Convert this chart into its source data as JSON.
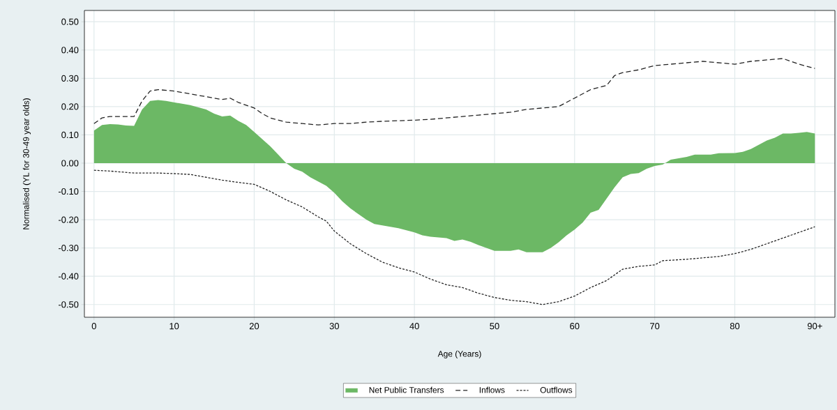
{
  "chart_data": {
    "type": "area",
    "xlabel": "Age (Years)",
    "ylabel": "Normalised (YL for 30-49 year olds)",
    "xlim": [
      -1.2,
      92.5
    ],
    "ylim": [
      -0.545,
      0.54
    ],
    "xticks": [
      0,
      10,
      20,
      30,
      40,
      50,
      60,
      70,
      80,
      {
        "value": 90,
        "label": "90+"
      }
    ],
    "yticks": [
      {
        "value": 0.5,
        "label": "0.50"
      },
      {
        "value": 0.4,
        "label": "0.40"
      },
      {
        "value": 0.3,
        "label": "0.30"
      },
      {
        "value": 0.2,
        "label": "0.20"
      },
      {
        "value": 0.1,
        "label": "0.10"
      },
      {
        "value": 0,
        "label": "0.00"
      },
      {
        "value": -0.1,
        "label": "-0.10"
      },
      {
        "value": -0.2,
        "label": "-0.20"
      },
      {
        "value": -0.3,
        "label": "-0.30"
      },
      {
        "value": -0.4,
        "label": "-0.40"
      },
      {
        "value": -0.5,
        "label": "-0.50"
      }
    ],
    "grid": true,
    "legend": "bottom",
    "series": [
      {
        "name": "Net Public Transfers",
        "color": "#6cb865",
        "x": [
          0,
          1,
          2,
          3,
          4,
          5,
          6,
          7,
          8,
          9,
          10,
          12,
          14,
          15,
          16,
          17,
          18,
          19,
          20,
          21,
          22,
          23,
          24,
          25,
          26,
          27,
          28,
          29,
          30,
          31,
          32,
          33,
          34,
          35,
          36,
          37,
          38,
          40,
          41,
          42,
          44,
          45,
          46,
          47,
          48,
          50,
          52,
          53,
          54,
          56,
          57,
          58,
          59,
          60,
          61,
          62,
          63,
          64,
          65,
          66,
          67,
          68,
          69,
          70,
          71,
          72,
          73,
          74,
          75,
          77,
          78,
          80,
          81,
          82,
          83,
          84,
          85,
          86,
          87,
          88,
          89,
          90
        ],
        "values": [
          0.115,
          0.135,
          0.138,
          0.137,
          0.133,
          0.132,
          0.19,
          0.22,
          0.223,
          0.22,
          0.215,
          0.205,
          0.19,
          0.175,
          0.165,
          0.168,
          0.15,
          0.135,
          0.11,
          0.085,
          0.06,
          0.03,
          0.0,
          -0.02,
          -0.03,
          -0.05,
          -0.065,
          -0.08,
          -0.105,
          -0.135,
          -0.16,
          -0.18,
          -0.2,
          -0.215,
          -0.22,
          -0.225,
          -0.23,
          -0.245,
          -0.255,
          -0.26,
          -0.265,
          -0.275,
          -0.27,
          -0.278,
          -0.29,
          -0.31,
          -0.31,
          -0.305,
          -0.315,
          -0.315,
          -0.3,
          -0.28,
          -0.255,
          -0.235,
          -0.21,
          -0.175,
          -0.165,
          -0.125,
          -0.085,
          -0.05,
          -0.038,
          -0.035,
          -0.02,
          -0.01,
          -0.005,
          0.012,
          0.017,
          0.022,
          0.03,
          0.03,
          0.035,
          0.036,
          0.04,
          0.05,
          0.065,
          0.08,
          0.09,
          0.105,
          0.105,
          0.107,
          0.11,
          0.105
        ]
      },
      {
        "name": "Inflows",
        "type": "line",
        "line_style": "dashed",
        "color": "#222222",
        "x": [
          0,
          1,
          2,
          4,
          5,
          6,
          7,
          8,
          10,
          12,
          14,
          16,
          17,
          18,
          20,
          21,
          22,
          24,
          26,
          28,
          30,
          32,
          34,
          36,
          38,
          40,
          42,
          44,
          46,
          48,
          50,
          52,
          54,
          56,
          58,
          60,
          62,
          64,
          65,
          66,
          68,
          70,
          72,
          74,
          76,
          78,
          80,
          82,
          84,
          86,
          88,
          90
        ],
        "values": [
          0.14,
          0.16,
          0.165,
          0.165,
          0.165,
          0.22,
          0.255,
          0.26,
          0.255,
          0.245,
          0.235,
          0.225,
          0.23,
          0.215,
          0.195,
          0.175,
          0.16,
          0.145,
          0.14,
          0.135,
          0.14,
          0.14,
          0.145,
          0.148,
          0.15,
          0.152,
          0.155,
          0.16,
          0.165,
          0.17,
          0.175,
          0.18,
          0.19,
          0.195,
          0.2,
          0.23,
          0.26,
          0.275,
          0.31,
          0.32,
          0.33,
          0.345,
          0.35,
          0.355,
          0.36,
          0.355,
          0.35,
          0.36,
          0.365,
          0.37,
          0.35,
          0.335
        ]
      },
      {
        "name": "Outflows",
        "type": "line",
        "line_style": "dotted",
        "color": "#222222",
        "x": [
          0,
          2,
          5,
          8,
          10,
          12,
          14,
          16,
          18,
          20,
          22,
          24,
          26,
          28,
          29,
          30,
          32,
          34,
          36,
          38,
          40,
          42,
          44,
          46,
          48,
          50,
          52,
          54,
          56,
          58,
          60,
          62,
          64,
          66,
          68,
          70,
          71,
          74,
          76,
          78,
          80,
          82,
          84,
          86,
          88,
          90
        ],
        "values": [
          -0.025,
          -0.028,
          -0.035,
          -0.035,
          -0.037,
          -0.04,
          -0.05,
          -0.06,
          -0.068,
          -0.075,
          -0.1,
          -0.13,
          -0.155,
          -0.19,
          -0.205,
          -0.24,
          -0.285,
          -0.32,
          -0.35,
          -0.37,
          -0.385,
          -0.41,
          -0.43,
          -0.44,
          -0.46,
          -0.475,
          -0.485,
          -0.49,
          -0.5,
          -0.49,
          -0.47,
          -0.44,
          -0.415,
          -0.375,
          -0.365,
          -0.36,
          -0.345,
          -0.34,
          -0.335,
          -0.33,
          -0.32,
          -0.305,
          -0.285,
          -0.265,
          -0.245,
          -0.225
        ]
      }
    ]
  }
}
